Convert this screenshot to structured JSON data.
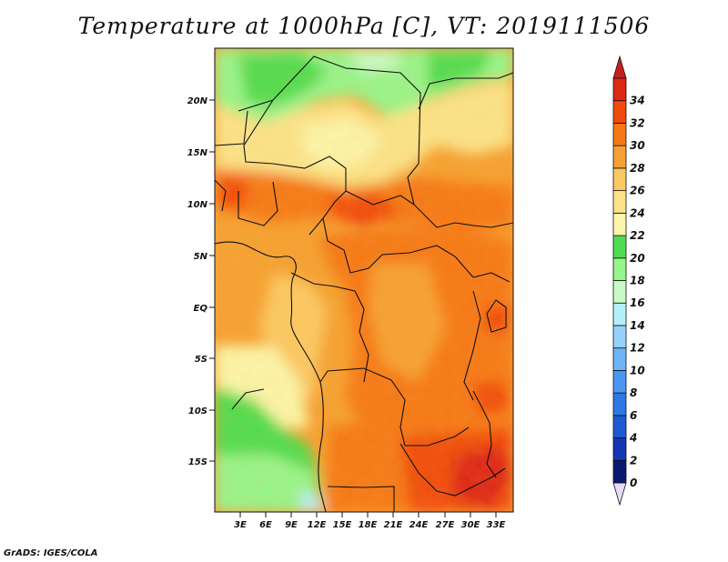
{
  "title": "Temperature at 1000hPa [C], VT: 2019111506",
  "credit": "GrADS: IGES/COLA",
  "lat_ticks": [
    "20N",
    "15N",
    "10N",
    "5N",
    "EQ",
    "5S",
    "10S",
    "15S"
  ],
  "lon_ticks": [
    "3E",
    "6E",
    "9E",
    "12E",
    "15E",
    "18E",
    "21E",
    "24E",
    "27E",
    "30E",
    "33E"
  ],
  "colorbar": {
    "labels": [
      "0",
      "2",
      "4",
      "6",
      "8",
      "10",
      "12",
      "14",
      "16",
      "18",
      "20",
      "22",
      "24",
      "26",
      "28",
      "30",
      "32",
      "34"
    ],
    "colors": [
      "#0a1a6e",
      "#1436b4",
      "#1e5ad2",
      "#2e78e6",
      "#4b96f0",
      "#6eb4f8",
      "#96d2fb",
      "#b4f0fa",
      "#c8fac8",
      "#96f58c",
      "#50dc50",
      "#faf5aa",
      "#fae38a",
      "#fac864",
      "#f5a032",
      "#f57814",
      "#f04b0a",
      "#dc2814"
    ],
    "under_color": "#e6dcfa",
    "over_color": "#c81e1e"
  }
}
